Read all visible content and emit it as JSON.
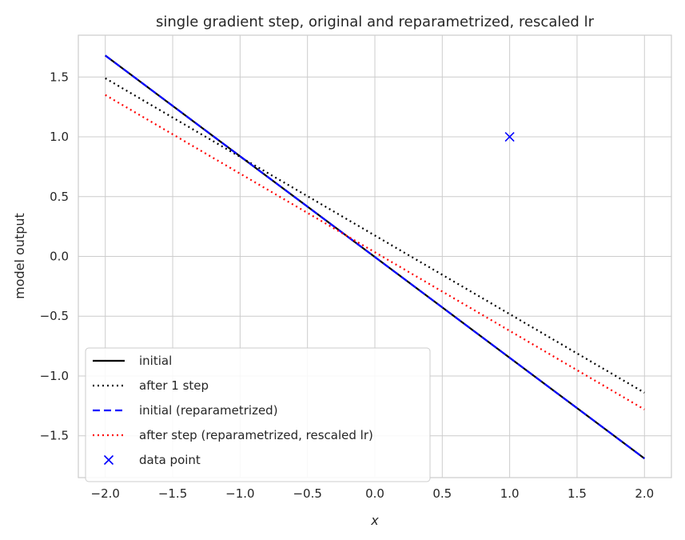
{
  "chart_data": {
    "type": "line",
    "title": "single gradient step, original and reparametrized, rescaled lr",
    "xlabel": "x",
    "ylabel": "model output",
    "xlim": [
      -2.2,
      2.2
    ],
    "ylim": [
      -1.85,
      1.85
    ],
    "xticks": [
      -2.0,
      -1.5,
      -1.0,
      -0.5,
      0.0,
      0.5,
      1.0,
      1.5,
      2.0
    ],
    "yticks": [
      -1.5,
      -1.0,
      -0.5,
      0.0,
      0.5,
      1.0,
      1.5
    ],
    "xtick_labels": [
      "−2.0",
      "−1.5",
      "−1.0",
      "−0.5",
      "0.0",
      "0.5",
      "1.0",
      "1.5",
      "2.0"
    ],
    "ytick_labels": [
      "−1.5",
      "−1.0",
      "−0.5",
      "0.0",
      "0.5",
      "1.0",
      "1.5"
    ],
    "grid": true,
    "legend_position": "lower-left",
    "series": [
      {
        "name": "initial",
        "color": "#000000",
        "style": "solid",
        "x": [
          -2.0,
          2.0
        ],
        "y": [
          1.68,
          -1.69
        ]
      },
      {
        "name": "after 1 step",
        "color": "#000000",
        "style": "dotted",
        "x": [
          -2.0,
          2.0
        ],
        "y": [
          1.49,
          -1.14
        ]
      },
      {
        "name": "initial (reparametrized)",
        "color": "#0000ff",
        "style": "dashed",
        "x": [
          -2.0,
          2.0
        ],
        "y": [
          1.68,
          -1.69
        ]
      },
      {
        "name": "after step (reparametrized, rescaled lr)",
        "color": "#ff0000",
        "style": "dotted",
        "x": [
          -2.0,
          2.0
        ],
        "y": [
          1.35,
          -1.28
        ]
      },
      {
        "name": "data point",
        "color": "#0000ff",
        "style": "marker-x",
        "x": [
          1.0
        ],
        "y": [
          1.0
        ]
      }
    ]
  }
}
